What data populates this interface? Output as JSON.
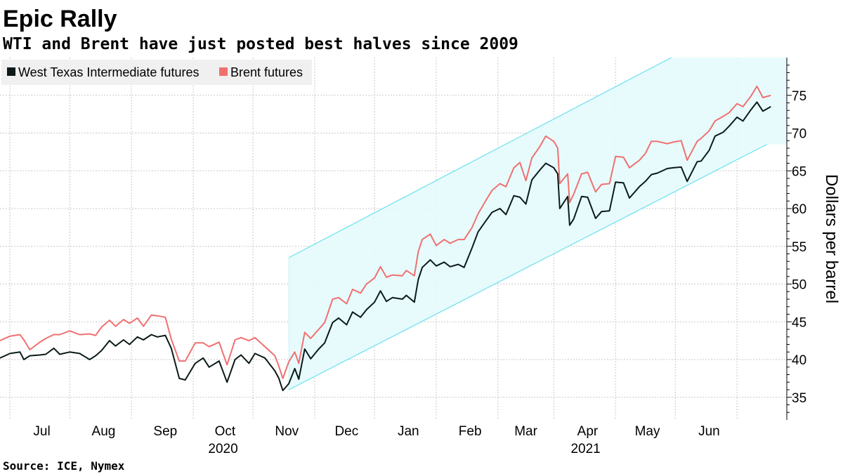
{
  "chart_data": {
    "type": "line",
    "title": "Epic Rally",
    "subtitle": "WTI and Brent have just posted best halves since 2009",
    "source": "Source: ICE, Nymex",
    "ylabel": "Dollars per barrel",
    "ylim": [
      32,
      80
    ],
    "yticks": [
      35,
      40,
      45,
      50,
      55,
      60,
      65,
      70,
      75
    ],
    "x_range": [
      "2020-06-10",
      "2021-07-10"
    ],
    "month_ticks": [
      "2020-06-15",
      "2020-07-15",
      "2020-08-15",
      "2020-09-15",
      "2020-10-15",
      "2020-11-15",
      "2020-12-15",
      "2021-01-15",
      "2021-02-15",
      "2021-03-15",
      "2021-04-15",
      "2021-05-15",
      "2021-06-15"
    ],
    "month_labels": [
      {
        "label": "Jul",
        "date": "2020-07-01"
      },
      {
        "label": "Aug",
        "date": "2020-08-01"
      },
      {
        "label": "Sep",
        "date": "2020-09-01"
      },
      {
        "label": "Oct",
        "date": "2020-10-01"
      },
      {
        "label": "Nov",
        "date": "2020-11-01"
      },
      {
        "label": "Dec",
        "date": "2020-12-01"
      },
      {
        "label": "Jan",
        "date": "2021-01-01"
      },
      {
        "label": "Feb",
        "date": "2021-02-01"
      },
      {
        "label": "Mar",
        "date": "2021-03-01"
      },
      {
        "label": "Apr",
        "date": "2021-04-01"
      },
      {
        "label": "May",
        "date": "2021-05-01"
      },
      {
        "label": "Jun",
        "date": "2021-06-01"
      }
    ],
    "year_labels": [
      {
        "label": "2020",
        "date": "2020-09-30"
      },
      {
        "label": "2021",
        "date": "2021-03-31"
      }
    ],
    "grid": true,
    "legend_position": "top-left",
    "colors": {
      "wti": "#0c1a1a",
      "brent": "#f07070",
      "channel_fill": "#e4fbfc",
      "channel_line": "#6be0ee",
      "grid": "#c8c8c8"
    },
    "channel": {
      "upper": [
        [
          "2020-11-02",
          53.5
        ],
        [
          "2021-05-13",
          80.0
        ]
      ],
      "lower": [
        [
          "2020-11-02",
          36.0
        ],
        [
          "2021-06-30",
          68.5
        ]
      ]
    },
    "series": [
      {
        "name": "West Texas Intermediate futures",
        "key": "wti",
        "points": [
          [
            "2020-06-10",
            40.2
          ],
          [
            "2020-06-15",
            40.8
          ],
          [
            "2020-06-20",
            41.0
          ],
          [
            "2020-06-22",
            40.0
          ],
          [
            "2020-06-25",
            40.5
          ],
          [
            "2020-06-30",
            40.6
          ],
          [
            "2020-07-03",
            40.7
          ],
          [
            "2020-07-07",
            41.5
          ],
          [
            "2020-07-10",
            40.7
          ],
          [
            "2020-07-15",
            41.0
          ],
          [
            "2020-07-20",
            40.8
          ],
          [
            "2020-07-25",
            40.0
          ],
          [
            "2020-07-28",
            40.5
          ],
          [
            "2020-07-31",
            41.2
          ],
          [
            "2020-08-04",
            42.5
          ],
          [
            "2020-08-07",
            41.8
          ],
          [
            "2020-08-11",
            42.6
          ],
          [
            "2020-08-14",
            42.0
          ],
          [
            "2020-08-18",
            43.0
          ],
          [
            "2020-08-21",
            42.6
          ],
          [
            "2020-08-25",
            43.3
          ],
          [
            "2020-08-28",
            43.0
          ],
          [
            "2020-09-01",
            43.2
          ],
          [
            "2020-09-04",
            41.5
          ],
          [
            "2020-09-08",
            37.5
          ],
          [
            "2020-09-11",
            37.3
          ],
          [
            "2020-09-16",
            39.5
          ],
          [
            "2020-09-20",
            40.2
          ],
          [
            "2020-09-23",
            39.0
          ],
          [
            "2020-09-28",
            39.8
          ],
          [
            "2020-10-02",
            37.0
          ],
          [
            "2020-10-06",
            40.0
          ],
          [
            "2020-10-09",
            40.6
          ],
          [
            "2020-10-13",
            39.5
          ],
          [
            "2020-10-16",
            40.8
          ],
          [
            "2020-10-21",
            40.2
          ],
          [
            "2020-10-26",
            38.5
          ],
          [
            "2020-10-28",
            37.5
          ],
          [
            "2020-10-30",
            35.9
          ],
          [
            "2020-11-02",
            36.8
          ],
          [
            "2020-11-05",
            38.8
          ],
          [
            "2020-11-07",
            37.4
          ],
          [
            "2020-11-10",
            41.4
          ],
          [
            "2020-11-13",
            40.1
          ],
          [
            "2020-11-17",
            41.4
          ],
          [
            "2020-11-20",
            42.2
          ],
          [
            "2020-11-24",
            44.9
          ],
          [
            "2020-11-27",
            45.5
          ],
          [
            "2020-12-01",
            44.6
          ],
          [
            "2020-12-04",
            46.3
          ],
          [
            "2020-12-08",
            45.6
          ],
          [
            "2020-12-11",
            46.6
          ],
          [
            "2020-12-15",
            47.6
          ],
          [
            "2020-12-18",
            49.1
          ],
          [
            "2020-12-21",
            47.7
          ],
          [
            "2020-12-24",
            48.2
          ],
          [
            "2020-12-29",
            48.0
          ],
          [
            "2020-12-31",
            48.5
          ],
          [
            "2021-01-04",
            47.6
          ],
          [
            "2021-01-06",
            50.6
          ],
          [
            "2021-01-08",
            52.2
          ],
          [
            "2021-01-12",
            53.2
          ],
          [
            "2021-01-15",
            52.4
          ],
          [
            "2021-01-19",
            52.9
          ],
          [
            "2021-01-22",
            52.3
          ],
          [
            "2021-01-26",
            52.6
          ],
          [
            "2021-01-29",
            52.2
          ],
          [
            "2021-02-02",
            54.8
          ],
          [
            "2021-02-05",
            56.9
          ],
          [
            "2021-02-09",
            58.4
          ],
          [
            "2021-02-12",
            59.5
          ],
          [
            "2021-02-16",
            60.0
          ],
          [
            "2021-02-19",
            59.2
          ],
          [
            "2021-02-23",
            61.7
          ],
          [
            "2021-02-26",
            61.5
          ],
          [
            "2021-03-01",
            60.6
          ],
          [
            "2021-03-04",
            63.8
          ],
          [
            "2021-03-08",
            65.1
          ],
          [
            "2021-03-11",
            66.0
          ],
          [
            "2021-03-15",
            65.4
          ],
          [
            "2021-03-17",
            64.6
          ],
          [
            "2021-03-18",
            60.0
          ],
          [
            "2021-03-22",
            61.6
          ],
          [
            "2021-03-23",
            57.8
          ],
          [
            "2021-03-25",
            58.6
          ],
          [
            "2021-03-29",
            61.6
          ],
          [
            "2021-04-01",
            61.5
          ],
          [
            "2021-04-05",
            58.7
          ],
          [
            "2021-04-08",
            59.6
          ],
          [
            "2021-04-12",
            59.7
          ],
          [
            "2021-04-15",
            63.5
          ],
          [
            "2021-04-19",
            63.4
          ],
          [
            "2021-04-22",
            61.4
          ],
          [
            "2021-04-27",
            62.9
          ],
          [
            "2021-04-30",
            63.6
          ],
          [
            "2021-05-03",
            64.5
          ],
          [
            "2021-05-06",
            64.7
          ],
          [
            "2021-05-11",
            65.3
          ],
          [
            "2021-05-14",
            65.4
          ],
          [
            "2021-05-18",
            65.5
          ],
          [
            "2021-05-21",
            63.6
          ],
          [
            "2021-05-26",
            66.2
          ],
          [
            "2021-05-28",
            66.3
          ],
          [
            "2021-06-01",
            67.7
          ],
          [
            "2021-06-04",
            69.6
          ],
          [
            "2021-06-08",
            70.1
          ],
          [
            "2021-06-11",
            70.9
          ],
          [
            "2021-06-15",
            72.1
          ],
          [
            "2021-06-18",
            71.6
          ],
          [
            "2021-06-22",
            73.1
          ],
          [
            "2021-06-25",
            74.1
          ],
          [
            "2021-06-28",
            72.9
          ],
          [
            "2021-07-02",
            73.5
          ]
        ]
      },
      {
        "name": "Brent futures",
        "key": "brent",
        "points": [
          [
            "2020-06-10",
            42.5
          ],
          [
            "2020-06-15",
            43.1
          ],
          [
            "2020-06-20",
            43.3
          ],
          [
            "2020-06-22",
            42.6
          ],
          [
            "2020-06-25",
            41.3
          ],
          [
            "2020-06-30",
            42.3
          ],
          [
            "2020-07-03",
            42.8
          ],
          [
            "2020-07-07",
            43.3
          ],
          [
            "2020-07-10",
            43.3
          ],
          [
            "2020-07-15",
            43.8
          ],
          [
            "2020-07-20",
            43.3
          ],
          [
            "2020-07-25",
            43.4
          ],
          [
            "2020-07-28",
            43.2
          ],
          [
            "2020-07-31",
            44.3
          ],
          [
            "2020-08-04",
            45.2
          ],
          [
            "2020-08-07",
            44.4
          ],
          [
            "2020-08-11",
            45.3
          ],
          [
            "2020-08-14",
            44.8
          ],
          [
            "2020-08-18",
            45.5
          ],
          [
            "2020-08-21",
            44.4
          ],
          [
            "2020-08-25",
            45.9
          ],
          [
            "2020-08-28",
            45.8
          ],
          [
            "2020-09-01",
            45.6
          ],
          [
            "2020-09-04",
            42.7
          ],
          [
            "2020-09-08",
            39.8
          ],
          [
            "2020-09-11",
            39.8
          ],
          [
            "2020-09-16",
            42.2
          ],
          [
            "2020-09-20",
            42.2
          ],
          [
            "2020-09-23",
            41.7
          ],
          [
            "2020-09-28",
            42.3
          ],
          [
            "2020-10-02",
            39.3
          ],
          [
            "2020-10-06",
            42.6
          ],
          [
            "2020-10-09",
            42.9
          ],
          [
            "2020-10-13",
            42.5
          ],
          [
            "2020-10-16",
            42.9
          ],
          [
            "2020-10-21",
            41.7
          ],
          [
            "2020-10-26",
            40.5
          ],
          [
            "2020-10-28",
            39.1
          ],
          [
            "2020-10-30",
            37.5
          ],
          [
            "2020-11-02",
            39.7
          ],
          [
            "2020-11-05",
            41.0
          ],
          [
            "2020-11-07",
            39.5
          ],
          [
            "2020-11-10",
            43.6
          ],
          [
            "2020-11-13",
            42.8
          ],
          [
            "2020-11-17",
            44.0
          ],
          [
            "2020-11-20",
            44.9
          ],
          [
            "2020-11-24",
            48.0
          ],
          [
            "2020-11-27",
            48.2
          ],
          [
            "2020-12-01",
            47.4
          ],
          [
            "2020-12-04",
            49.3
          ],
          [
            "2020-12-08",
            48.8
          ],
          [
            "2020-12-11",
            50.0
          ],
          [
            "2020-12-15",
            50.8
          ],
          [
            "2020-12-18",
            52.3
          ],
          [
            "2020-12-21",
            50.9
          ],
          [
            "2020-12-24",
            51.2
          ],
          [
            "2020-12-29",
            51.1
          ],
          [
            "2020-12-31",
            51.8
          ],
          [
            "2021-01-04",
            51.1
          ],
          [
            "2021-01-06",
            54.3
          ],
          [
            "2021-01-08",
            55.9
          ],
          [
            "2021-01-12",
            56.6
          ],
          [
            "2021-01-15",
            55.1
          ],
          [
            "2021-01-19",
            55.9
          ],
          [
            "2021-01-22",
            55.4
          ],
          [
            "2021-01-26",
            55.9
          ],
          [
            "2021-01-29",
            55.9
          ],
          [
            "2021-02-02",
            57.5
          ],
          [
            "2021-02-05",
            59.3
          ],
          [
            "2021-02-09",
            61.1
          ],
          [
            "2021-02-12",
            62.4
          ],
          [
            "2021-02-16",
            63.3
          ],
          [
            "2021-02-19",
            62.9
          ],
          [
            "2021-02-23",
            65.4
          ],
          [
            "2021-02-26",
            66.1
          ],
          [
            "2021-03-01",
            63.7
          ],
          [
            "2021-03-04",
            66.7
          ],
          [
            "2021-03-08",
            68.2
          ],
          [
            "2021-03-11",
            69.6
          ],
          [
            "2021-03-15",
            68.9
          ],
          [
            "2021-03-17",
            68.0
          ],
          [
            "2021-03-18",
            63.3
          ],
          [
            "2021-03-22",
            64.6
          ],
          [
            "2021-03-23",
            60.8
          ],
          [
            "2021-03-25",
            61.9
          ],
          [
            "2021-03-29",
            64.6
          ],
          [
            "2021-04-01",
            64.8
          ],
          [
            "2021-04-05",
            62.2
          ],
          [
            "2021-04-08",
            63.2
          ],
          [
            "2021-04-12",
            63.3
          ],
          [
            "2021-04-15",
            66.9
          ],
          [
            "2021-04-19",
            66.8
          ],
          [
            "2021-04-22",
            65.4
          ],
          [
            "2021-04-27",
            66.4
          ],
          [
            "2021-04-30",
            67.3
          ],
          [
            "2021-05-03",
            68.9
          ],
          [
            "2021-05-06",
            68.9
          ],
          [
            "2021-05-11",
            68.6
          ],
          [
            "2021-05-14",
            68.8
          ],
          [
            "2021-05-18",
            69.0
          ],
          [
            "2021-05-21",
            66.4
          ],
          [
            "2021-05-26",
            68.9
          ],
          [
            "2021-05-28",
            69.3
          ],
          [
            "2021-06-01",
            70.3
          ],
          [
            "2021-06-04",
            71.6
          ],
          [
            "2021-06-08",
            72.2
          ],
          [
            "2021-06-11",
            72.7
          ],
          [
            "2021-06-15",
            73.9
          ],
          [
            "2021-06-18",
            73.5
          ],
          [
            "2021-06-22",
            74.9
          ],
          [
            "2021-06-25",
            76.2
          ],
          [
            "2021-06-28",
            74.7
          ],
          [
            "2021-07-02",
            75.0
          ]
        ]
      }
    ]
  }
}
